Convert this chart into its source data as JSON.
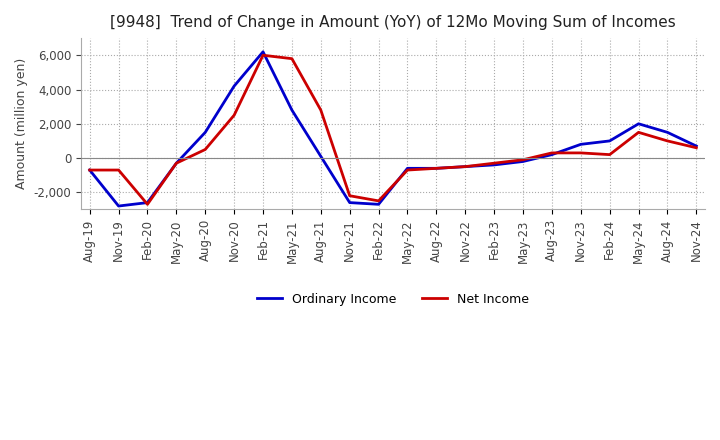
{
  "title": "[9948]  Trend of Change in Amount (YoY) of 12Mo Moving Sum of Incomes",
  "ylabel": "Amount (million yen)",
  "ylim": [
    -3000,
    7000
  ],
  "yticks": [
    -2000,
    0,
    2000,
    4000,
    6000
  ],
  "x_labels": [
    "Aug-19",
    "Nov-19",
    "Feb-20",
    "May-20",
    "Aug-20",
    "Nov-20",
    "Feb-21",
    "May-21",
    "Aug-21",
    "Nov-21",
    "Feb-22",
    "May-22",
    "Aug-22",
    "Nov-22",
    "Feb-23",
    "May-23",
    "Aug-23",
    "Nov-23",
    "Feb-24",
    "May-24",
    "Aug-24",
    "Nov-24"
  ],
  "ordinary_income": [
    -700,
    -2800,
    -2600,
    -300,
    1500,
    4200,
    6200,
    2800,
    100,
    -2600,
    -2700,
    -600,
    -600,
    -500,
    -400,
    -200,
    200,
    800,
    1000,
    2000,
    1500,
    700
  ],
  "net_income": [
    -700,
    -700,
    -2700,
    -300,
    500,
    2500,
    6000,
    5800,
    2800,
    -2200,
    -2500,
    -700,
    -600,
    -500,
    -300,
    -100,
    300,
    300,
    200,
    1500,
    1000,
    600
  ],
  "ordinary_color": "#0000cc",
  "net_color": "#cc0000",
  "line_width": 2.0,
  "title_fontsize": 11,
  "label_fontsize": 9,
  "tick_fontsize": 8.5,
  "background_color": "#ffffff",
  "grid_color": "#aaaaaa"
}
